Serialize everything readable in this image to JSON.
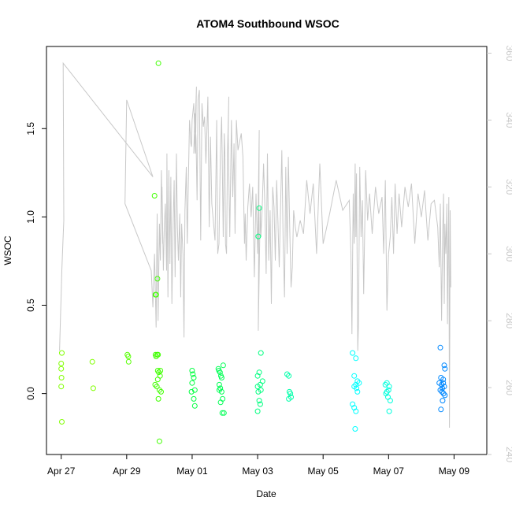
{
  "chart_data": {
    "type": "scatter",
    "title": "ATOM4 Southbound WSOC",
    "xlabel": "Date",
    "ylabel": "WSOC",
    "x_unit": "days since Apr 27",
    "xlim": [
      -0.45,
      13.0
    ],
    "ylim": [
      -0.345,
      1.965
    ],
    "y2lim": [
      240,
      362
    ],
    "x_ticks": [
      {
        "value": 0,
        "label": "Apr 27"
      },
      {
        "value": 2,
        "label": "Apr 29"
      },
      {
        "value": 4,
        "label": "May 01"
      },
      {
        "value": 6,
        "label": "May 03"
      },
      {
        "value": 8,
        "label": "May 05"
      },
      {
        "value": 10,
        "label": "May 07"
      },
      {
        "value": 12,
        "label": "May 09"
      }
    ],
    "y_ticks": [
      {
        "value": 0.0,
        "label": "0.0"
      },
      {
        "value": 0.5,
        "label": "0.5"
      },
      {
        "value": 1.0,
        "label": "1.0"
      },
      {
        "value": 1.5,
        "label": "1.5"
      }
    ],
    "y2_ticks": [
      {
        "value": 240,
        "label": "240"
      },
      {
        "value": 260,
        "label": "260"
      },
      {
        "value": 280,
        "label": "280"
      },
      {
        "value": 300,
        "label": "300"
      },
      {
        "value": 320,
        "label": "320"
      },
      {
        "value": 340,
        "label": "340"
      },
      {
        "value": 360,
        "label": "360"
      }
    ],
    "secondary_color": "#c8c8c8",
    "point_series": [
      {
        "name": "group-1",
        "color": "#80ff00",
        "points": [
          [
            0.0,
            0.17
          ],
          [
            0.02,
            0.23
          ],
          [
            0.0,
            0.14
          ],
          [
            0.01,
            0.09
          ],
          [
            0.0,
            0.04
          ],
          [
            0.02,
            -0.16
          ],
          [
            0.95,
            0.18
          ],
          [
            0.98,
            0.03
          ]
        ]
      },
      {
        "name": "group-2",
        "color": "#55ff00",
        "points": [
          [
            2.02,
            0.22
          ],
          [
            2.05,
            0.21
          ],
          [
            2.06,
            0.18
          ]
        ]
      },
      {
        "name": "group-3",
        "color": "#40ff00",
        "points": [
          [
            2.85,
            1.12
          ],
          [
            2.88,
            0.22
          ],
          [
            2.9,
            0.21
          ],
          [
            2.93,
            0.22
          ],
          [
            2.95,
            0.13
          ],
          [
            2.98,
            0.12
          ],
          [
            3.02,
            0.1
          ],
          [
            2.87,
            0.05
          ],
          [
            2.92,
            0.04
          ],
          [
            2.95,
            0.08
          ],
          [
            3.0,
            0.02
          ],
          [
            3.03,
            0.13
          ],
          [
            3.05,
            0.01
          ],
          [
            2.97,
            -0.03
          ],
          [
            3.0,
            -0.27
          ],
          [
            2.88,
            0.56
          ],
          [
            2.9,
            0.56
          ],
          [
            2.94,
            0.65
          ],
          [
            2.97,
            1.87
          ],
          [
            2.96,
            0.22
          ]
        ]
      },
      {
        "name": "group-4",
        "color": "#00ff40",
        "points": [
          [
            4.0,
            0.13
          ],
          [
            4.02,
            0.11
          ],
          [
            4.05,
            0.09
          ],
          [
            4.0,
            0.06
          ],
          [
            4.08,
            0.02
          ],
          [
            4.05,
            -0.03
          ],
          [
            4.08,
            -0.07
          ],
          [
            3.98,
            0.01
          ]
        ]
      },
      {
        "name": "group-5",
        "color": "#00ff55",
        "points": [
          [
            4.8,
            0.14
          ],
          [
            4.82,
            0.13
          ],
          [
            4.85,
            0.12
          ],
          [
            4.88,
            0.1
          ],
          [
            4.9,
            0.09
          ],
          [
            4.95,
            0.16
          ],
          [
            4.83,
            0.05
          ],
          [
            4.86,
            0.03
          ],
          [
            4.9,
            0.01
          ],
          [
            4.93,
            -0.03
          ],
          [
            4.87,
            -0.05
          ],
          [
            4.92,
            -0.11
          ],
          [
            4.97,
            -0.11
          ],
          [
            4.83,
            0.02
          ]
        ]
      },
      {
        "name": "group-6",
        "color": "#00ff80",
        "points": [
          [
            6.05,
            1.05
          ],
          [
            6.1,
            0.23
          ],
          [
            6.0,
            0.1
          ],
          [
            6.05,
            0.12
          ],
          [
            6.08,
            0.05
          ],
          [
            6.0,
            0.04
          ],
          [
            6.02,
            0.01
          ],
          [
            6.1,
            0.02
          ],
          [
            6.15,
            0.07
          ],
          [
            6.05,
            -0.04
          ],
          [
            6.08,
            -0.06
          ],
          [
            6.0,
            -0.1
          ],
          [
            6.02,
            0.89
          ]
        ]
      },
      {
        "name": "group-7",
        "color": "#00ffaa",
        "points": [
          [
            6.9,
            0.11
          ],
          [
            6.95,
            0.1
          ],
          [
            7.0,
            0.0
          ],
          [
            7.02,
            -0.02
          ],
          [
            6.95,
            -0.03
          ],
          [
            6.97,
            0.01
          ]
        ]
      },
      {
        "name": "group-8",
        "color": "#00ffff",
        "points": [
          [
            8.9,
            0.23
          ],
          [
            9.0,
            0.2
          ],
          [
            8.95,
            0.1
          ],
          [
            9.05,
            0.07
          ],
          [
            9.1,
            0.06
          ],
          [
            9.0,
            0.05
          ],
          [
            8.95,
            0.04
          ],
          [
            9.02,
            0.03
          ],
          [
            8.9,
            -0.06
          ],
          [
            8.95,
            -0.08
          ],
          [
            9.0,
            -0.1
          ],
          [
            8.98,
            -0.2
          ],
          [
            9.05,
            0.01
          ]
        ]
      },
      {
        "name": "group-9",
        "color": "#00ffdd",
        "points": [
          [
            9.9,
            0.05
          ],
          [
            9.95,
            0.06
          ],
          [
            10.0,
            0.02
          ],
          [
            10.02,
            0.04
          ],
          [
            9.95,
            0.01
          ],
          [
            9.98,
            -0.02
          ],
          [
            10.05,
            -0.04
          ],
          [
            10.02,
            -0.1
          ],
          [
            9.92,
            0.0
          ]
        ]
      },
      {
        "name": "group-10",
        "color": "#0088ff",
        "points": [
          [
            11.58,
            0.26
          ],
          [
            11.7,
            0.16
          ],
          [
            11.72,
            0.14
          ],
          [
            11.6,
            0.09
          ],
          [
            11.67,
            0.08
          ],
          [
            11.55,
            0.06
          ],
          [
            11.62,
            0.05
          ],
          [
            11.7,
            0.04
          ],
          [
            11.58,
            0.02
          ],
          [
            11.63,
            0.01
          ],
          [
            11.68,
            0.0
          ],
          [
            11.72,
            -0.01
          ],
          [
            11.65,
            -0.04
          ],
          [
            11.6,
            -0.09
          ],
          [
            11.67,
            0.06
          ],
          [
            11.64,
            0.03
          ]
        ]
      }
    ],
    "secondary_line": [
      [
        -0.05,
        271
      ],
      [
        -0.02,
        282
      ],
      [
        0.0,
        288
      ],
      [
        0.02,
        295
      ],
      [
        0.05,
        303
      ],
      [
        0.08,
        310
      ],
      [
        0.06,
        357
      ],
      [
        2.8,
        323
      ],
      [
        2.0,
        346
      ],
      [
        1.95,
        315
      ],
      [
        2.75,
        295
      ],
      [
        2.8,
        284
      ],
      [
        2.85,
        300
      ],
      [
        2.9,
        278
      ],
      [
        2.93,
        312
      ],
      [
        2.96,
        280
      ],
      [
        3.0,
        309
      ],
      [
        3.03,
        298
      ],
      [
        3.06,
        325
      ],
      [
        3.1,
        303
      ],
      [
        3.08,
        320
      ],
      [
        3.12,
        295
      ],
      [
        3.15,
        308
      ],
      [
        3.18,
        315
      ],
      [
        3.22,
        295
      ],
      [
        3.23,
        330
      ],
      [
        3.26,
        287
      ],
      [
        3.29,
        325
      ],
      [
        3.32,
        297
      ],
      [
        3.35,
        323
      ],
      [
        3.38,
        285
      ],
      [
        3.42,
        309
      ],
      [
        3.45,
        322
      ],
      [
        3.48,
        293
      ],
      [
        3.52,
        330
      ],
      [
        3.55,
        308
      ],
      [
        3.58,
        298
      ],
      [
        3.62,
        312
      ],
      [
        3.65,
        287
      ],
      [
        3.68,
        309
      ],
      [
        3.72,
        300
      ],
      [
        3.75,
        275
      ],
      [
        3.78,
        313
      ],
      [
        3.82,
        326
      ],
      [
        3.85,
        303
      ],
      [
        3.88,
        320
      ],
      [
        3.92,
        340
      ],
      [
        3.96,
        333
      ],
      [
        3.98,
        332
      ],
      [
        4.0,
        340
      ],
      [
        4.05,
        345
      ],
      [
        4.1,
        330
      ],
      [
        4.13,
        350
      ],
      [
        4.1,
        340
      ],
      [
        4.05,
        330
      ],
      [
        4.08,
        342
      ],
      [
        4.12,
        334
      ],
      [
        4.15,
        316
      ],
      [
        4.18,
        346
      ],
      [
        4.22,
        349
      ],
      [
        4.26,
        304
      ],
      [
        4.3,
        345
      ],
      [
        4.34,
        338
      ],
      [
        4.38,
        341
      ],
      [
        4.42,
        327
      ],
      [
        4.48,
        347
      ],
      [
        4.52,
        308
      ],
      [
        4.56,
        335
      ],
      [
        4.6,
        315
      ],
      [
        4.7,
        304
      ],
      [
        4.75,
        340
      ],
      [
        4.78,
        300
      ],
      [
        4.82,
        303
      ],
      [
        4.86,
        329
      ],
      [
        4.9,
        341
      ],
      [
        4.95,
        305
      ],
      [
        4.98,
        336
      ],
      [
        5.0,
        330
      ],
      [
        5.02,
        303
      ],
      [
        5.05,
        300
      ],
      [
        5.08,
        330
      ],
      [
        5.12,
        347
      ],
      [
        5.1,
        336
      ],
      [
        5.15,
        305
      ],
      [
        5.2,
        340
      ],
      [
        5.24,
        317
      ],
      [
        5.28,
        333
      ],
      [
        5.31,
        306
      ],
      [
        5.35,
        340
      ],
      [
        5.4,
        331
      ],
      [
        5.5,
        336
      ],
      [
        5.55,
        329
      ],
      [
        5.6,
        303
      ],
      [
        5.62,
        312
      ],
      [
        5.65,
        298
      ],
      [
        5.7,
        314
      ],
      [
        5.75,
        321
      ],
      [
        5.8,
        311
      ],
      [
        5.85,
        320
      ],
      [
        5.9,
        293
      ],
      [
        5.95,
        318
      ],
      [
        6.0,
        300
      ],
      [
        6.05,
        337
      ],
      [
        6.02,
        277
      ],
      [
        6.08,
        314
      ],
      [
        6.1,
        305
      ],
      [
        6.14,
        314
      ],
      [
        6.18,
        327
      ],
      [
        6.22,
        315
      ],
      [
        6.26,
        294
      ],
      [
        6.3,
        330
      ],
      [
        6.34,
        298
      ],
      [
        6.38,
        313
      ],
      [
        6.42,
        285
      ],
      [
        6.46,
        320
      ],
      [
        6.5,
        314
      ],
      [
        6.54,
        298
      ],
      [
        6.58,
        322
      ],
      [
        6.62,
        310
      ],
      [
        6.66,
        296
      ],
      [
        6.7,
        314
      ],
      [
        6.74,
        331
      ],
      [
        6.78,
        303
      ],
      [
        6.82,
        287
      ],
      [
        6.86,
        326
      ],
      [
        6.9,
        300
      ],
      [
        6.94,
        329
      ],
      [
        6.98,
        308
      ],
      [
        7.02,
        290
      ],
      [
        7.06,
        296
      ],
      [
        7.1,
        313
      ],
      [
        7.15,
        308
      ],
      [
        7.2,
        305
      ],
      [
        7.3,
        310
      ],
      [
        7.4,
        306
      ],
      [
        7.5,
        322
      ],
      [
        7.6,
        312
      ],
      [
        7.7,
        321
      ],
      [
        7.8,
        300
      ],
      [
        7.9,
        327
      ],
      [
        8.0,
        303
      ],
      [
        8.2,
        312
      ],
      [
        8.4,
        322
      ],
      [
        8.6,
        313
      ],
      [
        8.8,
        316
      ],
      [
        8.85,
        300
      ],
      [
        8.88,
        276
      ],
      [
        8.92,
        318
      ],
      [
        8.95,
        303
      ],
      [
        8.98,
        327
      ],
      [
        9.0,
        305
      ],
      [
        9.02,
        324
      ],
      [
        9.06,
        271
      ],
      [
        9.08,
        279
      ],
      [
        9.12,
        326
      ],
      [
        9.16,
        305
      ],
      [
        9.2,
        316
      ],
      [
        9.24,
        288
      ],
      [
        9.3,
        325
      ],
      [
        9.36,
        310
      ],
      [
        9.42,
        318
      ],
      [
        9.5,
        306
      ],
      [
        9.6,
        320
      ],
      [
        9.7,
        312
      ],
      [
        9.8,
        317
      ],
      [
        9.85,
        300
      ],
      [
        9.9,
        322
      ],
      [
        9.95,
        283
      ],
      [
        10.0,
        300
      ],
      [
        10.05,
        305
      ],
      [
        10.1,
        317
      ],
      [
        10.15,
        300
      ],
      [
        10.2,
        321
      ],
      [
        10.26,
        306
      ],
      [
        10.32,
        318
      ],
      [
        10.4,
        308
      ],
      [
        10.5,
        320
      ],
      [
        10.6,
        314
      ],
      [
        10.7,
        321
      ],
      [
        10.8,
        303
      ],
      [
        10.9,
        318
      ],
      [
        11.0,
        311
      ],
      [
        11.1,
        319
      ],
      [
        11.2,
        304
      ],
      [
        11.3,
        315
      ],
      [
        11.4,
        316
      ],
      [
        11.5,
        308
      ],
      [
        11.55,
        296
      ],
      [
        11.58,
        315
      ],
      [
        11.62,
        280
      ],
      [
        11.65,
        305
      ],
      [
        11.68,
        318
      ],
      [
        11.7,
        285
      ],
      [
        11.72,
        309
      ],
      [
        11.75,
        300
      ],
      [
        11.78,
        315
      ],
      [
        11.8,
        279
      ],
      [
        11.82,
        303
      ],
      [
        11.84,
        317
      ],
      [
        11.86,
        248
      ],
      [
        11.88,
        313
      ],
      [
        11.9,
        290
      ]
    ]
  }
}
